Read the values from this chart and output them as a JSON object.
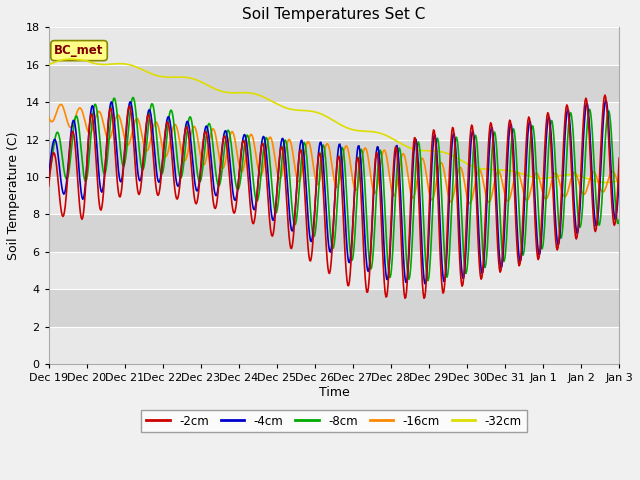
{
  "title": "Soil Temperatures Set C",
  "xlabel": "Time",
  "ylabel": "Soil Temperature (C)",
  "ylim": [
    0,
    18
  ],
  "yticks": [
    0,
    2,
    4,
    6,
    8,
    10,
    12,
    14,
    16,
    18
  ],
  "annotation": "BC_met",
  "legend_labels": [
    "-2cm",
    "-4cm",
    "-8cm",
    "-16cm",
    "-32cm"
  ],
  "legend_colors": [
    "#cc0000",
    "#0000cc",
    "#00aa00",
    "#ff8800",
    "#dddd00"
  ],
  "title_fontsize": 11,
  "label_fontsize": 9,
  "tick_fontsize": 8
}
